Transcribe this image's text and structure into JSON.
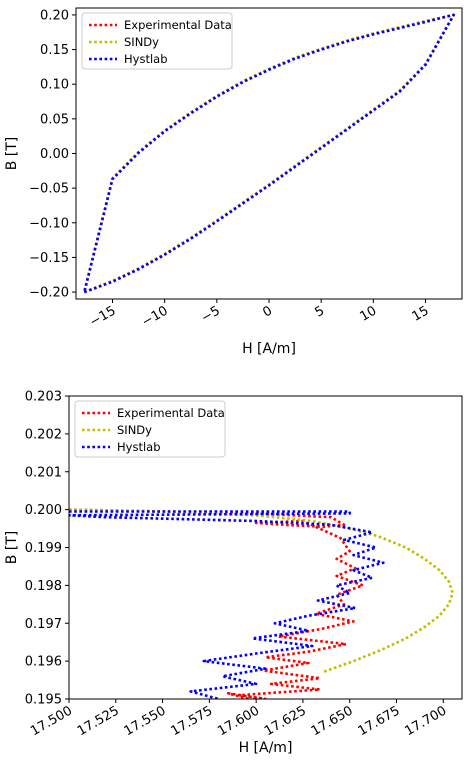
{
  "chart_data": [
    {
      "type": "line",
      "xlabel": "H [A/m]",
      "ylabel": "B [T]",
      "xlim": [
        -18.5,
        18.5
      ],
      "ylim": [
        -0.21,
        0.21
      ],
      "xticks": [
        -15,
        -10,
        -5,
        0,
        5,
        10,
        15
      ],
      "xtick_labels": [
        "−15",
        "−10",
        "−5",
        "0",
        "5",
        "10",
        "15"
      ],
      "yticks": [
        0.2,
        0.15,
        0.1,
        0.05,
        0.0,
        -0.05,
        -0.1,
        -0.15,
        -0.2
      ],
      "ytick_labels": [
        "0.20",
        "0.15",
        "0.10",
        "0.05",
        "0.00",
        "−0.05",
        "−0.10",
        "−0.15",
        "−0.20"
      ],
      "grid": false,
      "legend_position": "top-left",
      "series": [
        {
          "name": "Experimental Data",
          "color": "#ff0000",
          "style": "dotted",
          "x": [
            -17.7,
            -15.0,
            -12.5,
            -10.0,
            -7.5,
            -5.0,
            -2.5,
            0.0,
            2.5,
            5.0,
            7.5,
            10.0,
            12.5,
            15.0,
            17.7,
            15.0,
            12.5,
            10.0,
            7.5,
            5.0,
            2.5,
            0.0,
            -2.5,
            -5.0,
            -7.5,
            -10.0,
            -12.5,
            -15.0,
            -17.7
          ],
          "y": [
            -0.2,
            -0.184,
            -0.166,
            -0.145,
            -0.122,
            -0.097,
            -0.071,
            -0.045,
            -0.018,
            0.009,
            0.036,
            0.063,
            0.09,
            0.129,
            0.2,
            0.191,
            0.182,
            0.173,
            0.163,
            0.151,
            0.138,
            0.122,
            0.104,
            0.083,
            0.059,
            0.033,
            0.002,
            -0.036,
            -0.2
          ]
        },
        {
          "name": "SINDy",
          "color": "#bfbf00",
          "style": "dotted",
          "x": [
            -17.7,
            -15.0,
            -12.5,
            -10.0,
            -7.5,
            -5.0,
            -2.5,
            0.0,
            2.5,
            5.0,
            7.5,
            10.0,
            12.5,
            15.0,
            17.7,
            15.0,
            12.5,
            10.0,
            7.5,
            5.0,
            2.5,
            0.0,
            -2.5,
            -5.0,
            -7.5,
            -10.0,
            -12.5,
            -15.0,
            -17.7
          ],
          "y": [
            -0.2,
            -0.184,
            -0.166,
            -0.145,
            -0.122,
            -0.097,
            -0.071,
            -0.045,
            -0.018,
            0.009,
            0.036,
            0.063,
            0.09,
            0.129,
            0.2,
            0.191,
            0.182,
            0.173,
            0.163,
            0.151,
            0.138,
            0.122,
            0.104,
            0.083,
            0.059,
            0.033,
            0.002,
            -0.036,
            -0.2
          ]
        },
        {
          "name": "Hystlab",
          "color": "#0000ff",
          "style": "dotted",
          "x": [
            -17.7,
            -15.0,
            -12.5,
            -10.0,
            -7.5,
            -5.0,
            -2.5,
            0.0,
            2.5,
            5.0,
            7.5,
            10.0,
            12.5,
            15.0,
            17.7,
            15.0,
            12.5,
            10.0,
            7.5,
            5.0,
            2.5,
            0.0,
            -2.5,
            -5.0,
            -7.5,
            -10.0,
            -12.5,
            -15.0,
            -17.7
          ],
          "y": [
            -0.2,
            -0.185,
            -0.167,
            -0.146,
            -0.123,
            -0.098,
            -0.072,
            -0.046,
            -0.019,
            0.008,
            0.035,
            0.062,
            0.089,
            0.128,
            0.2,
            0.19,
            0.181,
            0.172,
            0.162,
            0.15,
            0.137,
            0.121,
            0.103,
            0.082,
            0.058,
            0.032,
            0.001,
            -0.037,
            -0.2
          ]
        }
      ]
    },
    {
      "type": "line",
      "xlabel": "H [A/m]",
      "ylabel": "B [T]",
      "xlim": [
        17.5,
        17.71
      ],
      "ylim": [
        0.195,
        0.203
      ],
      "xticks": [
        17.5,
        17.525,
        17.55,
        17.575,
        17.6,
        17.625,
        17.65,
        17.675,
        17.7
      ],
      "xtick_labels": [
        "17.500",
        "17.525",
        "17.550",
        "17.575",
        "17.600",
        "17.625",
        "17.650",
        "17.675",
        "17.700"
      ],
      "yticks": [
        0.203,
        0.202,
        0.201,
        0.2,
        0.199,
        0.198,
        0.197,
        0.196,
        0.195
      ],
      "ytick_labels": [
        "0.203",
        "0.202",
        "0.201",
        "0.200",
        "0.199",
        "0.198",
        "0.197",
        "0.196",
        "0.195"
      ],
      "grid": false,
      "legend_position": "top-left",
      "series": [
        {
          "name": "Experimental Data",
          "color": "#ff0000",
          "style": "dotted",
          "x": [
            17.5,
            17.55,
            17.6,
            17.62,
            17.64,
            17.647,
            17.636,
            17.615,
            17.6,
            17.625,
            17.645,
            17.65,
            17.643,
            17.653,
            17.643,
            17.657,
            17.643,
            17.647,
            17.632,
            17.652,
            17.635,
            17.612,
            17.648,
            17.628,
            17.605,
            17.628,
            17.604,
            17.634,
            17.608,
            17.634,
            17.591,
            17.605,
            17.585,
            17.6,
            17.58,
            17.6,
            17.575
          ],
          "y": [
            0.2,
            0.19995,
            0.1999,
            0.19985,
            0.1998,
            0.1996,
            0.19955,
            0.1996,
            0.19965,
            0.1997,
            0.19925,
            0.1989,
            0.1987,
            0.19845,
            0.19825,
            0.198,
            0.19775,
            0.1975,
            0.19725,
            0.19705,
            0.19685,
            0.19665,
            0.19645,
            0.19625,
            0.1961,
            0.19595,
            0.19575,
            0.19555,
            0.1954,
            0.19525,
            0.1951,
            0.195,
            0.19515,
            0.19495,
            0.19485,
            0.1947,
            0.1946
          ]
        },
        {
          "name": "SINDy",
          "color": "#bfbf00",
          "style": "dotted",
          "x": [
            17.5,
            17.55,
            17.6,
            17.63,
            17.65,
            17.665,
            17.68,
            17.69,
            17.698,
            17.703,
            17.705,
            17.703,
            17.698,
            17.69,
            17.68,
            17.667,
            17.652,
            17.635
          ],
          "y": [
            0.2,
            0.19995,
            0.19985,
            0.1997,
            0.1995,
            0.1993,
            0.199,
            0.1987,
            0.1984,
            0.1981,
            0.1978,
            0.1975,
            0.1972,
            0.1969,
            0.1966,
            0.1963,
            0.196,
            0.1957
          ]
        },
        {
          "name": "Hystlab",
          "color": "#0000ff",
          "style": "dotted",
          "x": [
            17.5,
            17.65,
            17.65,
            17.5,
            17.52,
            17.6,
            17.64,
            17.662,
            17.647,
            17.664,
            17.652,
            17.668,
            17.652,
            17.662,
            17.643,
            17.65,
            17.633,
            17.653,
            17.628,
            17.61,
            17.628,
            17.598,
            17.63,
            17.6,
            17.572,
            17.605,
            17.582,
            17.6,
            17.565,
            17.58,
            17.57
          ],
          "y": [
            0.19995,
            0.19995,
            0.1999,
            0.19985,
            0.1998,
            0.1997,
            0.1996,
            0.1994,
            0.1992,
            0.199,
            0.1988,
            0.1986,
            0.1984,
            0.1982,
            0.198,
            0.1978,
            0.1976,
            0.1974,
            0.1972,
            0.197,
            0.1968,
            0.1966,
            0.1964,
            0.1962,
            0.196,
            0.1958,
            0.1956,
            0.1954,
            0.1952,
            0.195,
            0.1948
          ]
        }
      ]
    }
  ]
}
